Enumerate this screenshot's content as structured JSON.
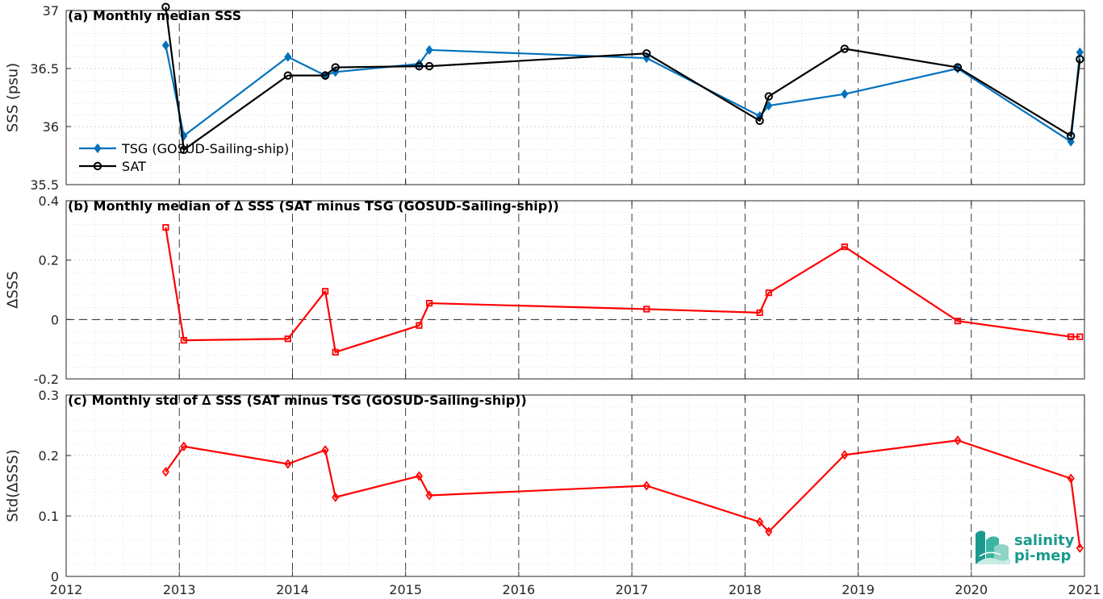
{
  "x_ticks": [
    "2012",
    "2013",
    "2014",
    "2015",
    "2016",
    "2017",
    "2018",
    "2019",
    "2020",
    "2021"
  ],
  "colors": {
    "tsg": "#0072BD",
    "sat": "#000000",
    "delta": "#ff0000",
    "logo": "#1a9a8e"
  },
  "logo": {
    "line1": "salinity",
    "line2": "pi-mep"
  },
  "chart_data": [
    {
      "type": "line",
      "title": "(a) Monthly median SSS",
      "ylabel": "SSS (psu)",
      "xlim": [
        2012,
        2021
      ],
      "ylim": [
        35.5,
        37
      ],
      "y_ticks": [
        "35.5",
        "36",
        "36.5",
        "37"
      ],
      "y_tick_values": [
        35.5,
        36,
        36.5,
        37
      ],
      "grid": true,
      "legend": "center-left",
      "series": [
        {
          "name": "TSG (GOSUD-Sailing-ship)",
          "marker": "diamond",
          "color": "#0072BD",
          "x": [
            2012.88,
            2013.04,
            2013.96,
            2014.29,
            2014.38,
            2015.12,
            2015.21,
            2017.13,
            2018.13,
            2018.21,
            2018.88,
            2019.88,
            2020.88,
            2020.96
          ],
          "y": [
            36.7,
            35.92,
            36.6,
            36.44,
            36.47,
            36.54,
            36.66,
            36.59,
            36.09,
            36.18,
            36.28,
            36.5,
            35.87,
            36.64
          ]
        },
        {
          "name": "SAT",
          "marker": "circle",
          "color": "#000000",
          "x": [
            2012.88,
            2013.04,
            2013.96,
            2014.29,
            2014.38,
            2015.12,
            2015.21,
            2017.13,
            2018.13,
            2018.21,
            2018.88,
            2019.88,
            2020.88,
            2020.96
          ],
          "y": [
            37.03,
            35.8,
            36.44,
            36.44,
            36.51,
            36.52,
            36.52,
            36.63,
            36.05,
            36.26,
            36.67,
            36.51,
            35.92,
            36.58
          ]
        }
      ]
    },
    {
      "type": "line",
      "title": "(b) Monthly median of ∆ SSS (SAT minus TSG (GOSUD-Sailing-ship))",
      "ylabel": "∆SSS",
      "xlim": [
        2012,
        2021
      ],
      "ylim": [
        -0.2,
        0.4
      ],
      "y_ticks": [
        "-0.2",
        "0",
        "0.2",
        "0.4"
      ],
      "y_tick_values": [
        -0.2,
        0,
        0.2,
        0.4
      ],
      "grid": true,
      "zero_line": true,
      "series": [
        {
          "marker": "square",
          "color": "#ff0000",
          "x": [
            2012.88,
            2013.04,
            2013.96,
            2014.29,
            2014.38,
            2015.12,
            2015.21,
            2017.13,
            2018.13,
            2018.21,
            2018.88,
            2019.88,
            2020.88,
            2020.96
          ],
          "y": [
            0.31,
            -0.07,
            -0.065,
            0.095,
            -0.11,
            -0.02,
            0.055,
            0.035,
            0.023,
            0.09,
            0.245,
            -0.005,
            -0.058,
            -0.058
          ]
        }
      ]
    },
    {
      "type": "line",
      "title": "(c) Monthly std of ∆ SSS (SAT minus TSG (GOSUD-Sailing-ship))",
      "ylabel": "Std(∆SSS)",
      "xlim": [
        2012,
        2021
      ],
      "ylim": [
        0,
        0.3
      ],
      "y_ticks": [
        "0",
        "0.1",
        "0.2",
        "0.3"
      ],
      "y_tick_values": [
        0,
        0.1,
        0.2,
        0.3
      ],
      "grid": true,
      "series": [
        {
          "marker": "diamond",
          "color": "#ff0000",
          "x": [
            2012.88,
            2013.04,
            2013.96,
            2014.29,
            2014.38,
            2015.12,
            2015.21,
            2017.13,
            2018.13,
            2018.21,
            2018.88,
            2019.88,
            2020.88,
            2020.96
          ],
          "y": [
            0.173,
            0.215,
            0.186,
            0.209,
            0.131,
            0.166,
            0.134,
            0.15,
            0.09,
            0.074,
            0.201,
            0.225,
            0.162,
            0.047
          ]
        }
      ]
    }
  ]
}
